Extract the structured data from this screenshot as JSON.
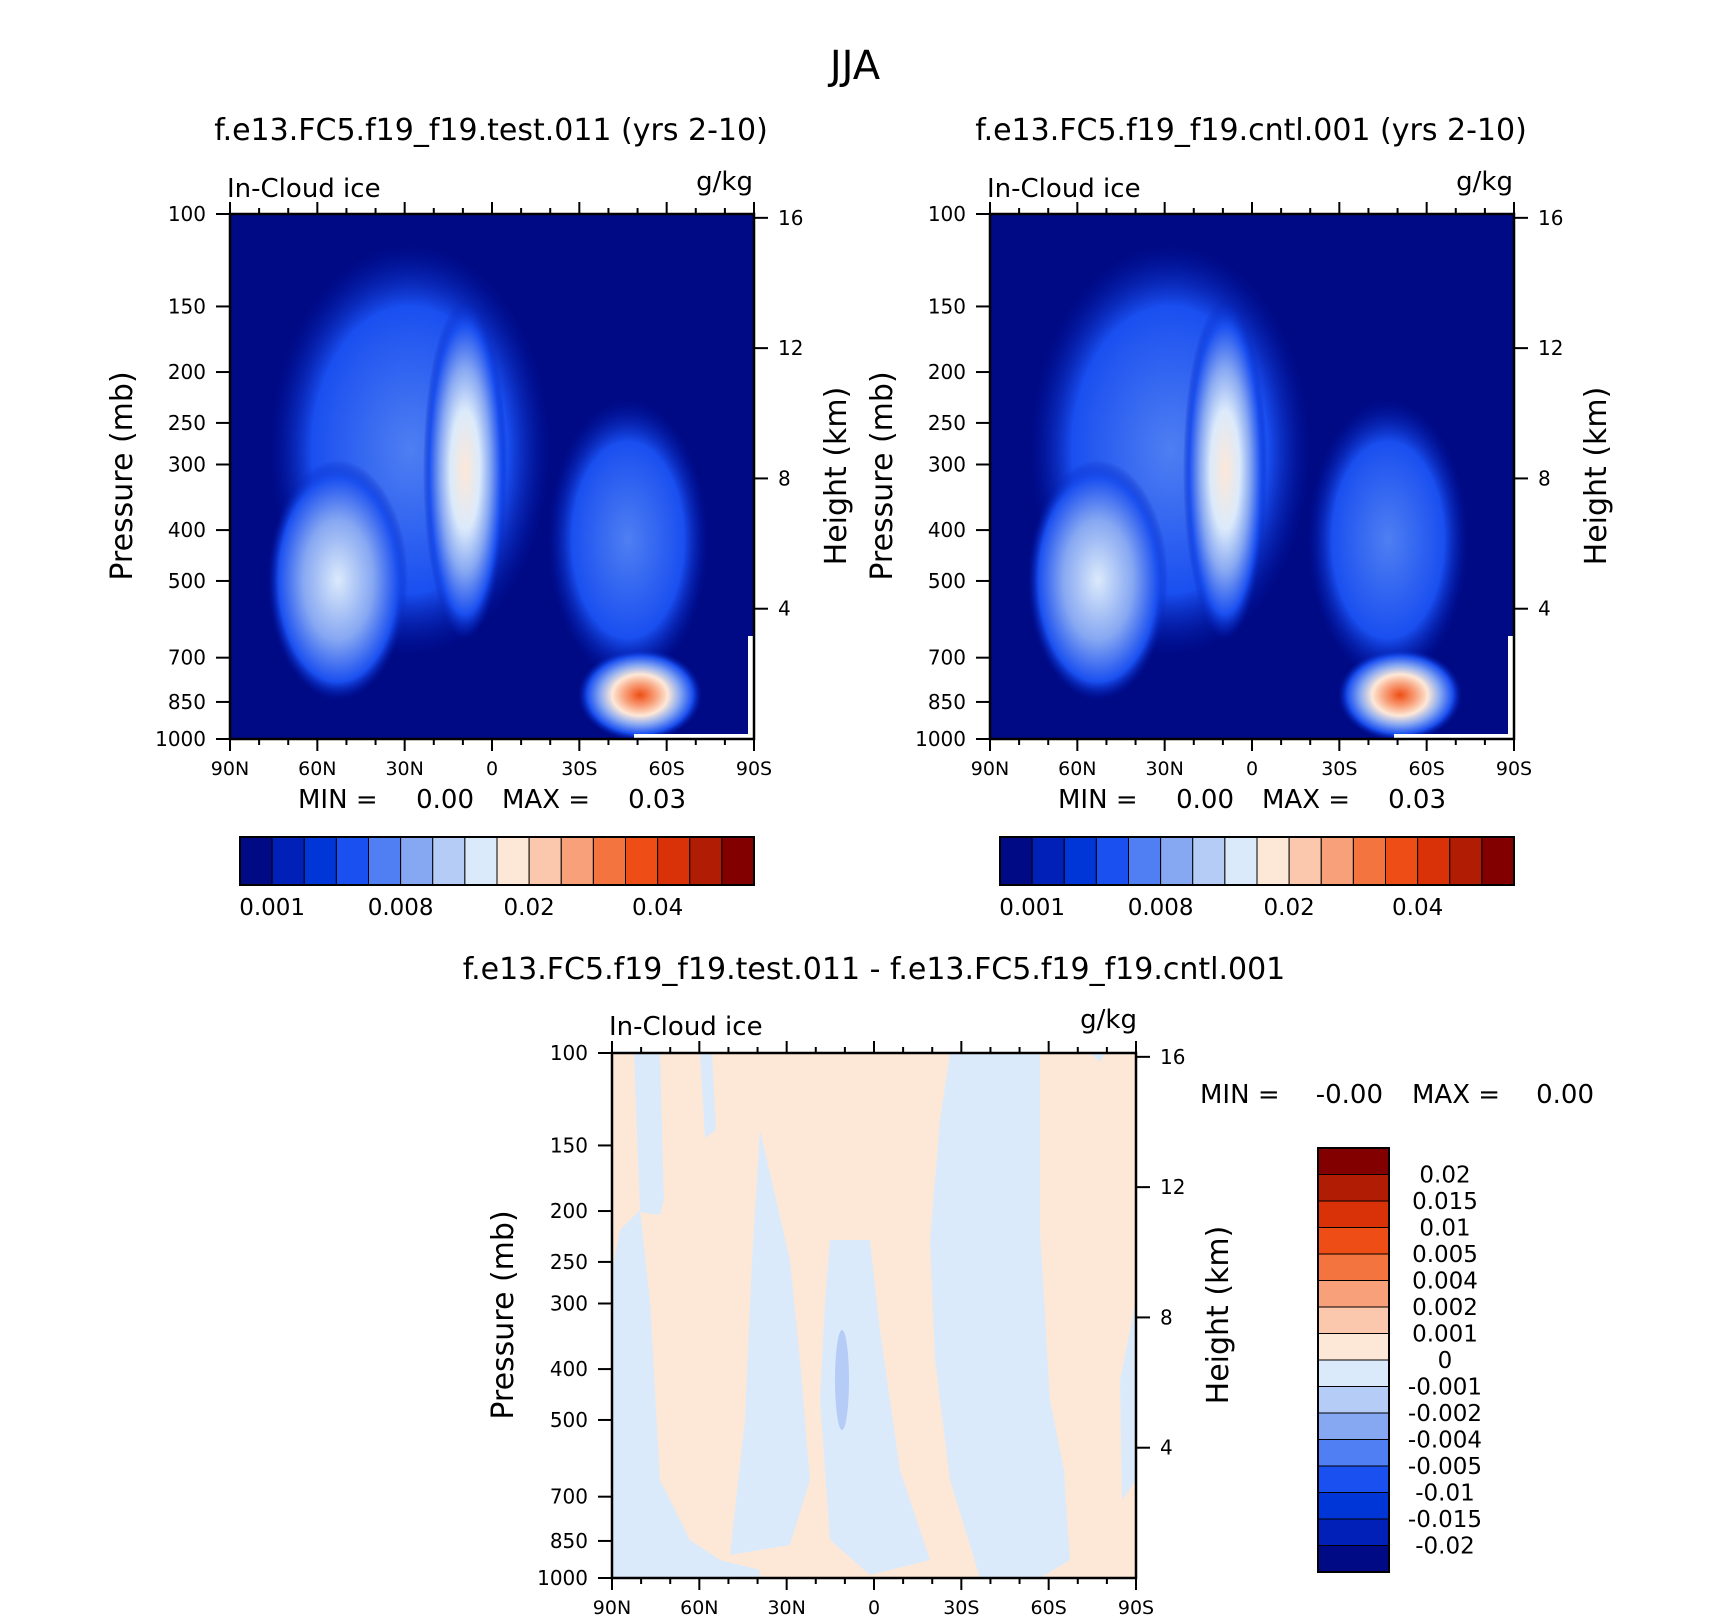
{
  "figure": {
    "title": "JJA",
    "panels": [
      {
        "name": "test",
        "title": "f.e13.FC5.f19_f19.test.011 (yrs 2-10)",
        "left_label": "In-Cloud ice",
        "right_label": "g/kg",
        "stats": {
          "min_label": "MIN =",
          "min_value": "0.00",
          "max_label": "MAX =",
          "max_value": "0.03"
        },
        "colorbar": {
          "orientation": "horizontal",
          "colors": [
            "#000a85",
            "#0020b8",
            "#0035d8",
            "#1a4ff0",
            "#4f7ff2",
            "#86a7f2",
            "#b5ccf7",
            "#dbeafb",
            "#fde8d8",
            "#fbc8ad",
            "#f8a07a",
            "#f4743f",
            "#ee4d15",
            "#d93208",
            "#b11d04",
            "#820000"
          ],
          "labels": [
            "0.001",
            "0.008",
            "0.02",
            "0.04"
          ],
          "label_positions": [
            0.5,
            4.5,
            8.5,
            12.5
          ]
        }
      },
      {
        "name": "cntl",
        "title": "f.e13.FC5.f19_f19.cntl.001 (yrs 2-10)",
        "left_label": "In-Cloud ice",
        "right_label": "g/kg",
        "stats": {
          "min_label": "MIN =",
          "min_value": "0.00",
          "max_label": "MAX =",
          "max_value": "0.03"
        },
        "colorbar": {
          "orientation": "horizontal",
          "colors": [
            "#000a85",
            "#0020b8",
            "#0035d8",
            "#1a4ff0",
            "#4f7ff2",
            "#86a7f2",
            "#b5ccf7",
            "#dbeafb",
            "#fde8d8",
            "#fbc8ad",
            "#f8a07a",
            "#f4743f",
            "#ee4d15",
            "#d93208",
            "#b11d04",
            "#820000"
          ],
          "labels": [
            "0.001",
            "0.008",
            "0.02",
            "0.04"
          ],
          "label_positions": [
            0.5,
            4.5,
            8.5,
            12.5
          ]
        }
      },
      {
        "name": "diff",
        "title": "f.e13.FC5.f19_f19.test.011 - f.e13.FC5.f19_f19.cntl.001",
        "left_label": "In-Cloud ice",
        "right_label": "g/kg",
        "stats": {
          "min_label": "MIN =",
          "min_value": "-0.00",
          "max_label": "MAX =",
          "max_value": "0.00"
        },
        "colorbar": {
          "orientation": "vertical",
          "colors": [
            "#820000",
            "#b11d04",
            "#d93208",
            "#ee4d15",
            "#f4743f",
            "#f8a07a",
            "#fbc8ad",
            "#fde8d8",
            "#dbeafb",
            "#b5ccf7",
            "#86a7f2",
            "#4f7ff2",
            "#1a4ff0",
            "#0035d8",
            "#0020b8",
            "#000a85"
          ],
          "labels": [
            "0.02",
            "0.015",
            "0.01",
            "0.005",
            "0.004",
            "0.002",
            "0.001",
            "0",
            "-0.001",
            "-0.002",
            "-0.004",
            "-0.005",
            "-0.01",
            "-0.015",
            "-0.02"
          ]
        }
      }
    ],
    "axes": {
      "x_ticks": [
        "90N",
        "60N",
        "30N",
        "0",
        "30S",
        "60S",
        "90S"
      ],
      "y_label": "Pressure (mb)",
      "y_ticks": [
        "100",
        "150",
        "200",
        "250",
        "300",
        "400",
        "500",
        "700",
        "850",
        "1000"
      ],
      "y2_label": "Height (km)",
      "y2_ticks": [
        "16",
        "12",
        "8",
        "4"
      ]
    }
  },
  "chart_data": [
    {
      "type": "heatmap",
      "title": "f.e13.FC5.f19_f19.test.011 (yrs 2-10)",
      "variable": "In-Cloud ice",
      "units": "g/kg",
      "xlabel": "",
      "ylabel": "Pressure (mb)",
      "y2label": "Height (km)",
      "x_ticks": [
        "90N",
        "60N",
        "30N",
        "0",
        "30S",
        "60S",
        "90S"
      ],
      "xlim": [
        90,
        -90
      ],
      "ylim": [
        1000,
        100
      ],
      "y_scale": "log",
      "y_ticks": [
        100,
        150,
        200,
        250,
        300,
        400,
        500,
        700,
        850,
        1000
      ],
      "y2_ticks": [
        16,
        12,
        8,
        4
      ],
      "levels": [
        0.001,
        0.002,
        0.004,
        0.006,
        0.008,
        0.01,
        0.012,
        0.015,
        0.02,
        0.025,
        0.03,
        0.035,
        0.04,
        0.045,
        0.05
      ],
      "min": 0.0,
      "max": 0.03
    },
    {
      "type": "heatmap",
      "title": "f.e13.FC5.f19_f19.cntl.001 (yrs 2-10)",
      "variable": "In-Cloud ice",
      "units": "g/kg",
      "xlabel": "",
      "ylabel": "Pressure (mb)",
      "y2label": "Height (km)",
      "x_ticks": [
        "90N",
        "60N",
        "30N",
        "0",
        "30S",
        "60S",
        "90S"
      ],
      "xlim": [
        90,
        -90
      ],
      "ylim": [
        1000,
        100
      ],
      "y_scale": "log",
      "y_ticks": [
        100,
        150,
        200,
        250,
        300,
        400,
        500,
        700,
        850,
        1000
      ],
      "y2_ticks": [
        16,
        12,
        8,
        4
      ],
      "levels": [
        0.001,
        0.002,
        0.004,
        0.006,
        0.008,
        0.01,
        0.012,
        0.015,
        0.02,
        0.025,
        0.03,
        0.035,
        0.04,
        0.045,
        0.05
      ],
      "min": 0.0,
      "max": 0.03
    },
    {
      "type": "heatmap",
      "title": "f.e13.FC5.f19_f19.test.011 - f.e13.FC5.f19_f19.cntl.001",
      "variable": "In-Cloud ice",
      "units": "g/kg",
      "xlabel": "",
      "ylabel": "Pressure (mb)",
      "y2label": "Height (km)",
      "x_ticks": [
        "90N",
        "60N",
        "30N",
        "0",
        "30S",
        "60S",
        "90S"
      ],
      "xlim": [
        90,
        -90
      ],
      "ylim": [
        1000,
        100
      ],
      "y_scale": "log",
      "y_ticks": [
        100,
        150,
        200,
        250,
        300,
        400,
        500,
        700,
        850,
        1000
      ],
      "y2_ticks": [
        16,
        12,
        8,
        4
      ],
      "levels": [
        -0.02,
        -0.015,
        -0.01,
        -0.005,
        -0.004,
        -0.002,
        -0.001,
        0,
        0.001,
        0.002,
        0.004,
        0.005,
        0.01,
        0.015,
        0.02
      ],
      "min": -0.0,
      "max": 0.0
    }
  ]
}
